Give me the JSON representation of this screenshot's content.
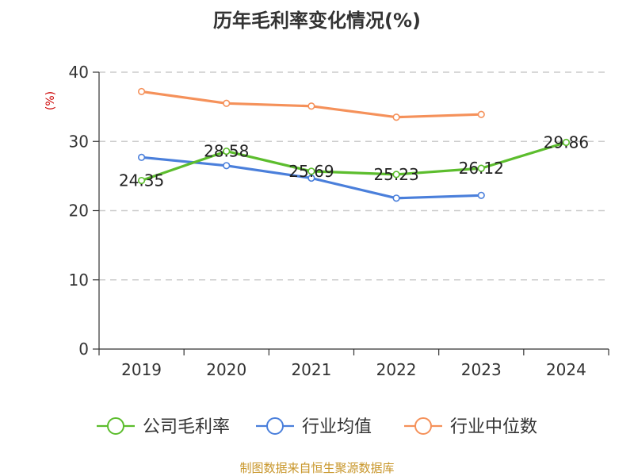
{
  "colors": {
    "company": "#5cbd2d",
    "industry_avg": "#4a7fdb",
    "industry_median": "#f5915a",
    "grid": "#cccccc",
    "axis": "#333333",
    "unit": "#cc0000",
    "source": "#c8962a"
  },
  "chart_data": {
    "type": "line",
    "title": "历年毛利率变化情况(%)",
    "ylabel": "(%)",
    "xlabel": "",
    "categories": [
      "2019",
      "2020",
      "2021",
      "2022",
      "2023",
      "2024"
    ],
    "ylim": [
      0,
      40
    ],
    "yticks": [
      "0",
      "10",
      "20",
      "30",
      "40"
    ],
    "grid": true,
    "legend_position": "bottom",
    "series": [
      {
        "name": "公司毛利率",
        "values": [
          24.35,
          28.58,
          25.69,
          25.23,
          26.12,
          29.86
        ],
        "labels": [
          "24.35",
          "28.58",
          "25.69",
          "25.23",
          "26.12",
          "29.86"
        ],
        "color": "#5cbd2d"
      },
      {
        "name": "行业均值",
        "values": [
          27.7,
          26.5,
          24.7,
          21.8,
          22.2,
          null
        ],
        "color": "#4a7fdb"
      },
      {
        "name": "行业中位数",
        "values": [
          37.2,
          35.5,
          35.1,
          33.5,
          33.9,
          null
        ],
        "color": "#f5915a"
      }
    ]
  },
  "source_text": "制图数据来自恒生聚源数据库"
}
